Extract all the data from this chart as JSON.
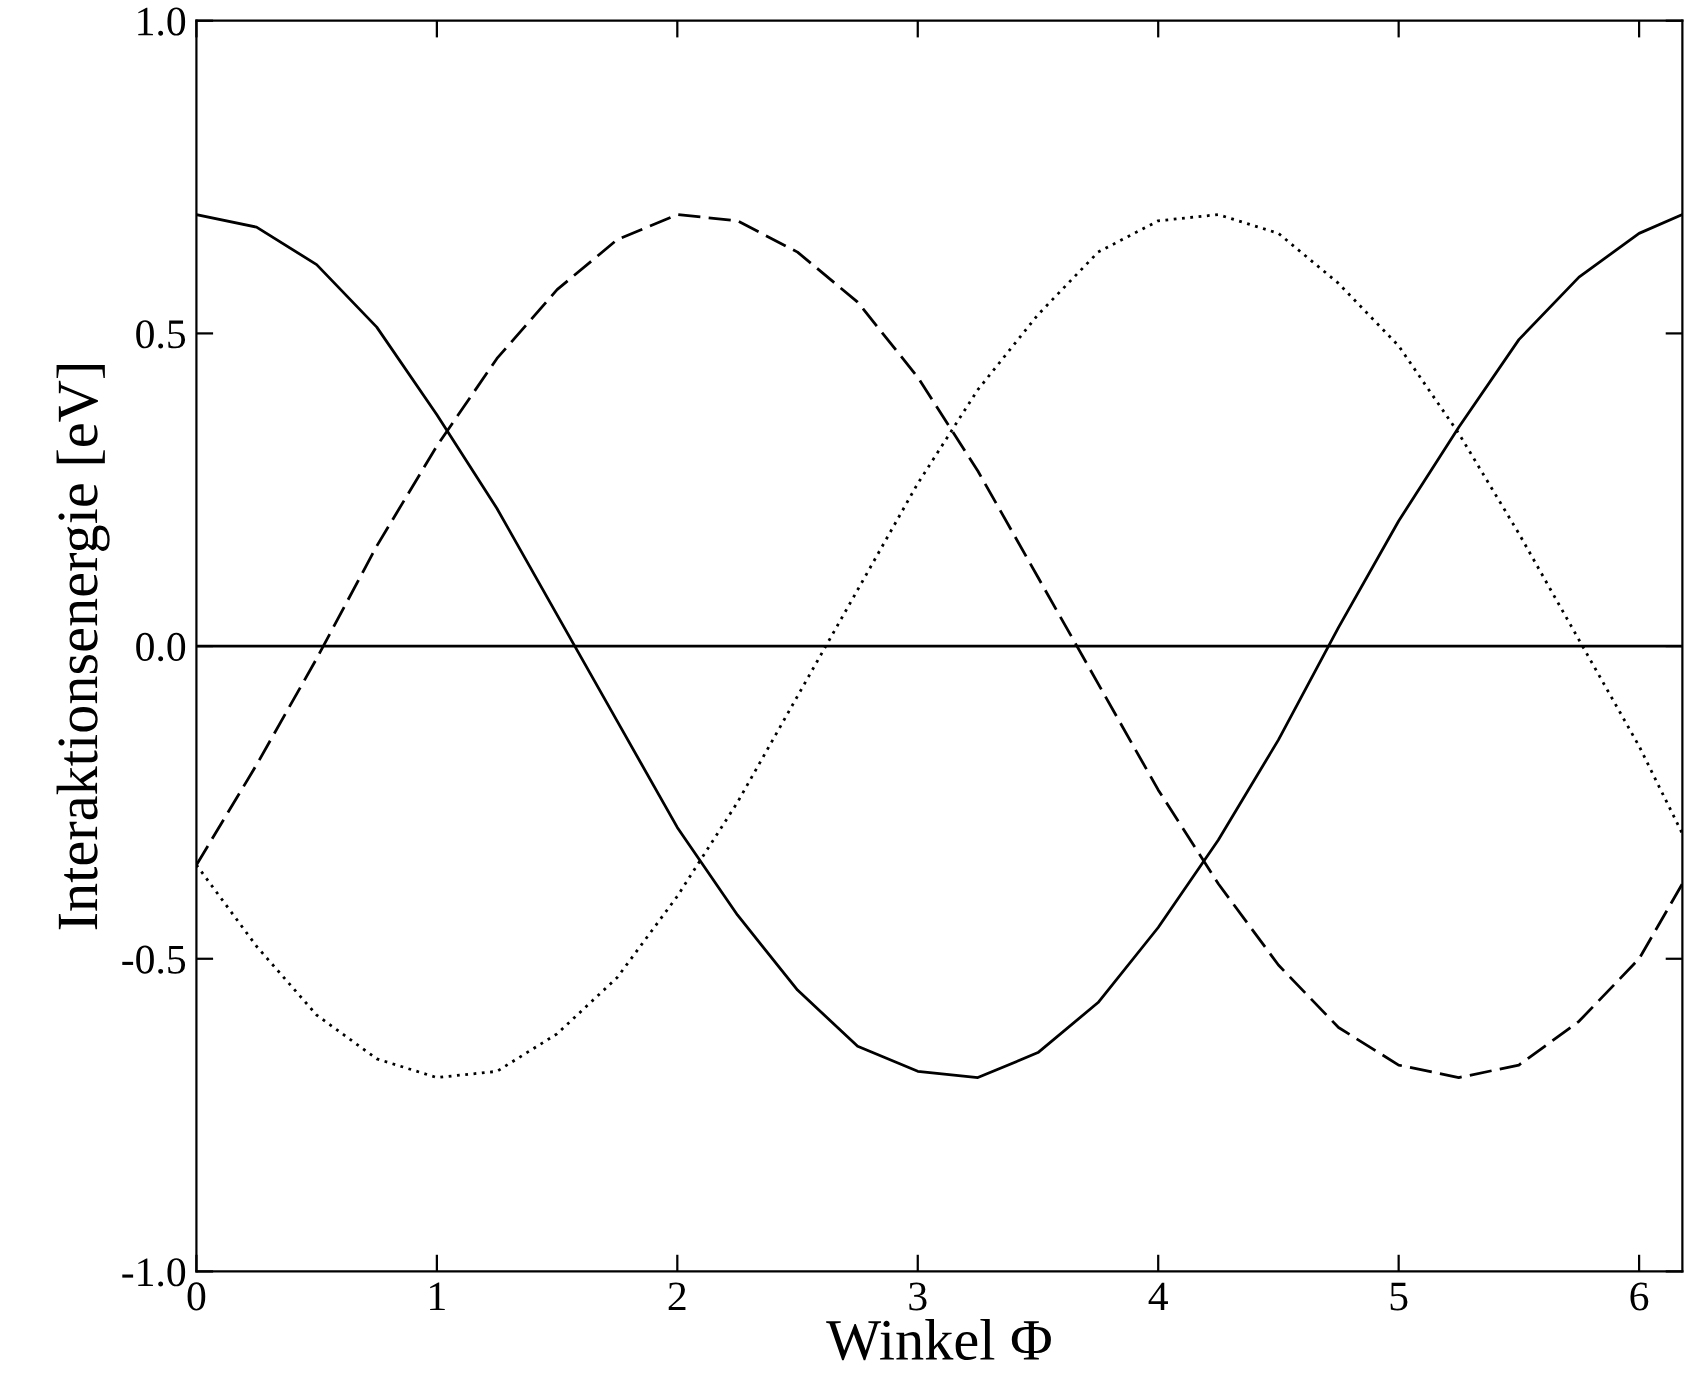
{
  "chart_data": {
    "type": "line",
    "xlabel": "Winkel Φ",
    "ylabel": "Interaktionsenergie [eV]",
    "x": [
      0,
      0.25,
      0.5,
      0.75,
      1.0,
      1.25,
      1.5,
      1.75,
      2.0,
      2.25,
      2.5,
      2.75,
      3.0,
      3.25,
      3.5,
      3.75,
      4.0,
      4.25,
      4.5,
      4.75,
      5.0,
      5.25,
      5.5,
      5.75,
      6.0,
      6.18
    ],
    "series": [
      {
        "color": "#000000",
        "line_style": "solid",
        "values": [
          0.69,
          0.67,
          0.61,
          0.51,
          0.37,
          0.22,
          0.05,
          -0.12,
          -0.29,
          -0.43,
          -0.55,
          -0.64,
          -0.68,
          -0.69,
          -0.65,
          -0.57,
          -0.45,
          -0.31,
          -0.15,
          0.03,
          0.2,
          0.35,
          0.49,
          0.59,
          0.66,
          0.69
        ]
      },
      {
        "color": "#000000",
        "line_style": "dashed",
        "values": [
          -0.35,
          -0.19,
          -0.02,
          0.16,
          0.32,
          0.46,
          0.57,
          0.65,
          0.69,
          0.68,
          0.63,
          0.55,
          0.43,
          0.28,
          0.11,
          -0.06,
          -0.23,
          -0.38,
          -0.51,
          -0.61,
          -0.67,
          -0.69,
          -0.67,
          -0.6,
          -0.5,
          -0.38
        ]
      },
      {
        "color": "#000000",
        "line_style": "dotted",
        "values": [
          -0.35,
          -0.48,
          -0.59,
          -0.66,
          -0.69,
          -0.68,
          -0.62,
          -0.53,
          -0.4,
          -0.25,
          -0.08,
          0.09,
          0.26,
          0.41,
          0.53,
          0.63,
          0.68,
          0.69,
          0.66,
          0.58,
          0.48,
          0.34,
          0.18,
          0.01,
          -0.16,
          -0.3
        ]
      }
    ],
    "xlim": [
      0,
      6.18
    ],
    "xticks": [
      0,
      1,
      2,
      3,
      4,
      5,
      6
    ],
    "ylim": [
      -1,
      1
    ],
    "yticks": [
      {
        "value": -1,
        "label": "-1.0"
      },
      {
        "value": -0.5,
        "label": "-0.5"
      },
      {
        "value": 0,
        "label": "0.0"
      },
      {
        "value": 0.5,
        "label": "0.5"
      },
      {
        "value": 1,
        "label": "1.0"
      }
    ],
    "ref_lines": [
      {
        "axis": "y",
        "value": 0,
        "color": "#000000",
        "line_style": "solid"
      }
    ],
    "grid": false,
    "legend": false,
    "marker": "none"
  }
}
